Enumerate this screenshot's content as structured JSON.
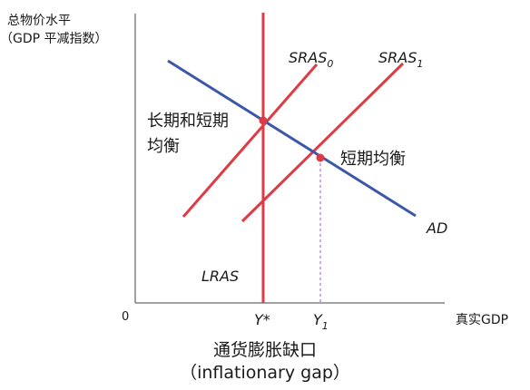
{
  "axes": {
    "y_title_line1": "总物价水平",
    "y_title_line2": "（GDP 平减指数）",
    "x_title": "真实GDP",
    "origin": "0"
  },
  "curves": {
    "lras": "LRAS",
    "ad": "AD",
    "sras0_main": "SRAS",
    "sras0_sub": "0",
    "sras1_main": "SRAS",
    "sras1_sub": "1"
  },
  "equilibria": {
    "long_short_line1": "长期和短期",
    "long_short_line2": "均衡",
    "short_run": "短期均衡"
  },
  "x_ticks": {
    "ystar": "Y*",
    "y1_main": "Y",
    "y1_sub": "1"
  },
  "gap": {
    "title_cn": "通货膨胀缺口",
    "title_en": "（inflationary gap）"
  },
  "colors": {
    "axis": "#444444",
    "red": "#dd3c44",
    "blue": "#3d57a8",
    "dash": "#9a5fc4",
    "text": "#1a1a1a"
  }
}
